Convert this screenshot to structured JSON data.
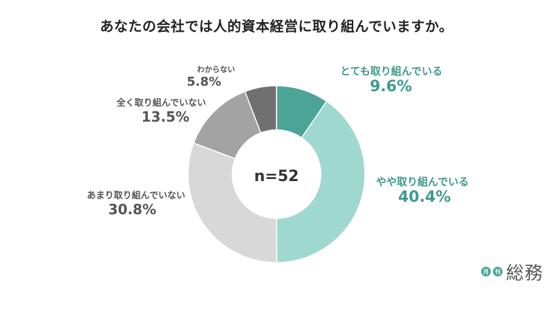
{
  "title": "あなたの会社では人的資本経営に取り組んでいますか。",
  "chart_data": {
    "type": "pie",
    "center_label": "n=52",
    "slices": [
      {
        "label": "とても取り組んでいる",
        "value": 9.6,
        "value_text": "9.6%",
        "color": "#4ba497",
        "text_color": "#3f9a8d"
      },
      {
        "label": "やや取り組んでいる",
        "value": 40.4,
        "value_text": "40.4%",
        "color": "#9fd8cf",
        "text_color": "#3f9a8d"
      },
      {
        "label": "あまり取り組んでいない",
        "value": 30.8,
        "value_text": "30.8%",
        "color": "#d8d8d8",
        "text_color": "#555555"
      },
      {
        "label": "全く取り組んでいない",
        "value": 13.5,
        "value_text": "13.5%",
        "color": "#a3a3a3",
        "text_color": "#555555"
      },
      {
        "label": "わからない",
        "value": 5.8,
        "value_text": "5.8%",
        "color": "#707070",
        "text_color": "#555555"
      }
    ]
  },
  "logo": {
    "badge1": "月",
    "badge2": "刊",
    "text": "総務"
  }
}
